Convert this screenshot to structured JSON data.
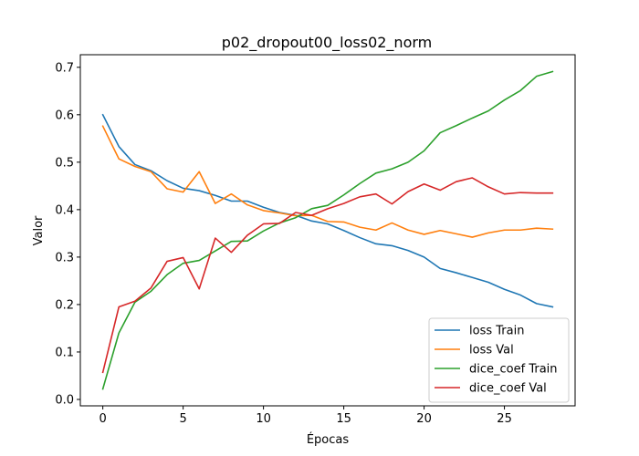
{
  "chart_data": {
    "type": "line",
    "title": "p02_dropout00_loss02_norm",
    "xlabel": "Épocas",
    "ylabel": "Valor",
    "xlim": [
      -1.4,
      29.4
    ],
    "ylim": [
      -0.0135,
      0.7265
    ],
    "xticks": [
      0,
      5,
      10,
      15,
      20,
      25
    ],
    "yticks": [
      0.0,
      0.1,
      0.2,
      0.3,
      0.4,
      0.5,
      0.6,
      0.7
    ],
    "ytick_labels": [
      "0.0",
      "0.1",
      "0.2",
      "0.3",
      "0.4",
      "0.5",
      "0.6",
      "0.7"
    ],
    "grid": false,
    "legend_position": "lower right",
    "x": [
      0,
      1,
      2,
      3,
      4,
      5,
      6,
      7,
      8,
      9,
      10,
      11,
      12,
      13,
      14,
      15,
      16,
      17,
      18,
      19,
      20,
      21,
      22,
      23,
      24,
      25,
      26,
      27,
      28
    ],
    "series": [
      {
        "name": "loss Train",
        "color": "#1f77b4",
        "values": [
          0.6,
          0.533,
          0.495,
          0.482,
          0.461,
          0.445,
          0.44,
          0.43,
          0.418,
          0.418,
          0.405,
          0.394,
          0.388,
          0.376,
          0.37,
          0.356,
          0.341,
          0.328,
          0.324,
          0.314,
          0.3,
          0.276,
          0.267,
          0.257,
          0.247,
          0.232,
          0.22,
          0.202,
          0.195
        ]
      },
      {
        "name": "loss Val",
        "color": "#ff7f0e",
        "values": [
          0.576,
          0.507,
          0.491,
          0.48,
          0.444,
          0.437,
          0.48,
          0.413,
          0.433,
          0.41,
          0.398,
          0.393,
          0.387,
          0.388,
          0.375,
          0.374,
          0.363,
          0.357,
          0.372,
          0.357,
          0.348,
          0.356,
          0.349,
          0.342,
          0.351,
          0.357,
          0.357,
          0.361,
          0.359
        ]
      },
      {
        "name": "dice_coef Train",
        "color": "#2ca02c",
        "values": [
          0.022,
          0.14,
          0.205,
          0.228,
          0.263,
          0.287,
          0.293,
          0.313,
          0.333,
          0.334,
          0.355,
          0.372,
          0.383,
          0.402,
          0.409,
          0.431,
          0.455,
          0.477,
          0.486,
          0.5,
          0.524,
          0.562,
          0.577,
          0.593,
          0.608,
          0.631,
          0.651,
          0.681,
          0.691
        ]
      },
      {
        "name": "dice_coef Val",
        "color": "#d62728",
        "values": [
          0.057,
          0.195,
          0.207,
          0.235,
          0.291,
          0.299,
          0.233,
          0.34,
          0.31,
          0.346,
          0.37,
          0.371,
          0.394,
          0.388,
          0.402,
          0.413,
          0.427,
          0.433,
          0.412,
          0.438,
          0.454,
          0.441,
          0.459,
          0.467,
          0.448,
          0.433,
          0.436,
          0.435,
          0.435
        ]
      }
    ]
  }
}
